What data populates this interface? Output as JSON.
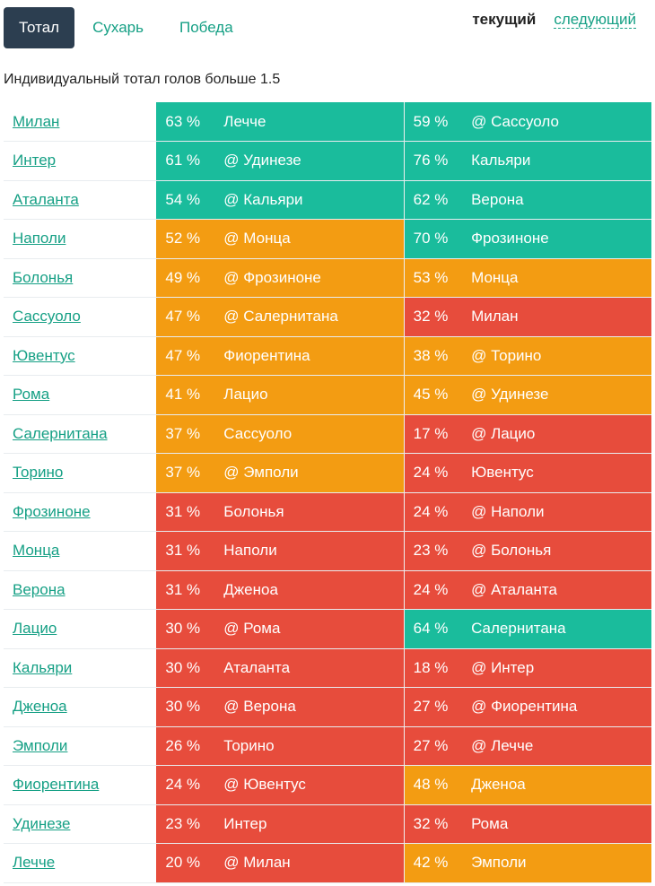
{
  "tabs": [
    "Тотал",
    "Сухарь",
    "Победа"
  ],
  "period": {
    "current": "текущий",
    "next": "следующий"
  },
  "subtitle": "Индивидуальный тотал голов больше 1.5",
  "colors": {
    "high": "#1abc9c",
    "mid": "#f39c12",
    "low": "#e74c3c",
    "accent": "#16a085",
    "active_tab": "#2c3e50"
  },
  "rows": [
    {
      "team": "Милан",
      "p1": "63 %",
      "o1": "Лечче",
      "c1": "g",
      "p2": "59 %",
      "o2": "@ Сассуоло",
      "c2": "g"
    },
    {
      "team": "Интер",
      "p1": "61 %",
      "o1": "@ Удинезе",
      "c1": "g",
      "p2": "76 %",
      "o2": "Кальяри",
      "c2": "g"
    },
    {
      "team": "Аталанта",
      "p1": "54 %",
      "o1": "@ Кальяри",
      "c1": "g",
      "p2": "62 %",
      "o2": "Верона",
      "c2": "g"
    },
    {
      "team": "Наполи",
      "p1": "52 %",
      "o1": "@ Монца",
      "c1": "o",
      "p2": "70 %",
      "o2": "Фрозиноне",
      "c2": "g"
    },
    {
      "team": "Болонья",
      "p1": "49 %",
      "o1": "@ Фрозиноне",
      "c1": "o",
      "p2": "53 %",
      "o2": "Монца",
      "c2": "o"
    },
    {
      "team": "Сассуоло",
      "p1": "47 %",
      "o1": "@ Салернитана",
      "c1": "o",
      "p2": "32 %",
      "o2": "Милан",
      "c2": "r"
    },
    {
      "team": "Ювентус",
      "p1": "47 %",
      "o1": "Фиорентина",
      "c1": "o",
      "p2": "38 %",
      "o2": "@ Торино",
      "c2": "o"
    },
    {
      "team": "Рома",
      "p1": "41 %",
      "o1": "Лацио",
      "c1": "o",
      "p2": "45 %",
      "o2": "@ Удинезе",
      "c2": "o"
    },
    {
      "team": "Салернитана",
      "p1": "37 %",
      "o1": "Сассуоло",
      "c1": "o",
      "p2": "17 %",
      "o2": "@ Лацио",
      "c2": "r"
    },
    {
      "team": "Торино",
      "p1": "37 %",
      "o1": "@ Эмполи",
      "c1": "o",
      "p2": "24 %",
      "o2": "Ювентус",
      "c2": "r"
    },
    {
      "team": "Фрозиноне",
      "p1": "31 %",
      "o1": "Болонья",
      "c1": "r",
      "p2": "24 %",
      "o2": "@ Наполи",
      "c2": "r"
    },
    {
      "team": "Монца",
      "p1": "31 %",
      "o1": "Наполи",
      "c1": "r",
      "p2": "23 %",
      "o2": "@ Болонья",
      "c2": "r"
    },
    {
      "team": "Верона",
      "p1": "31 %",
      "o1": "Дженоа",
      "c1": "r",
      "p2": "24 %",
      "o2": "@ Аталанта",
      "c2": "r"
    },
    {
      "team": "Лацио",
      "p1": "30 %",
      "o1": "@ Рома",
      "c1": "r",
      "p2": "64 %",
      "o2": "Салернитана",
      "c2": "g"
    },
    {
      "team": "Кальяри",
      "p1": "30 %",
      "o1": "Аталанта",
      "c1": "r",
      "p2": "18 %",
      "o2": "@ Интер",
      "c2": "r"
    },
    {
      "team": "Дженоа",
      "p1": "30 %",
      "o1": "@ Верона",
      "c1": "r",
      "p2": "27 %",
      "o2": "@ Фиорентина",
      "c2": "r"
    },
    {
      "team": "Эмполи",
      "p1": "26 %",
      "o1": "Торино",
      "c1": "r",
      "p2": "27 %",
      "o2": "@ Лечче",
      "c2": "r"
    },
    {
      "team": "Фиорентина",
      "p1": "24 %",
      "o1": "@ Ювентус",
      "c1": "r",
      "p2": "48 %",
      "o2": "Дженоа",
      "c2": "o"
    },
    {
      "team": "Удинезе",
      "p1": "23 %",
      "o1": "Интер",
      "c1": "r",
      "p2": "32 %",
      "o2": "Рома",
      "c2": "r"
    },
    {
      "team": "Лечче",
      "p1": "20 %",
      "o1": "@ Милан",
      "c1": "r",
      "p2": "42 %",
      "o2": "Эмполи",
      "c2": "o"
    }
  ]
}
